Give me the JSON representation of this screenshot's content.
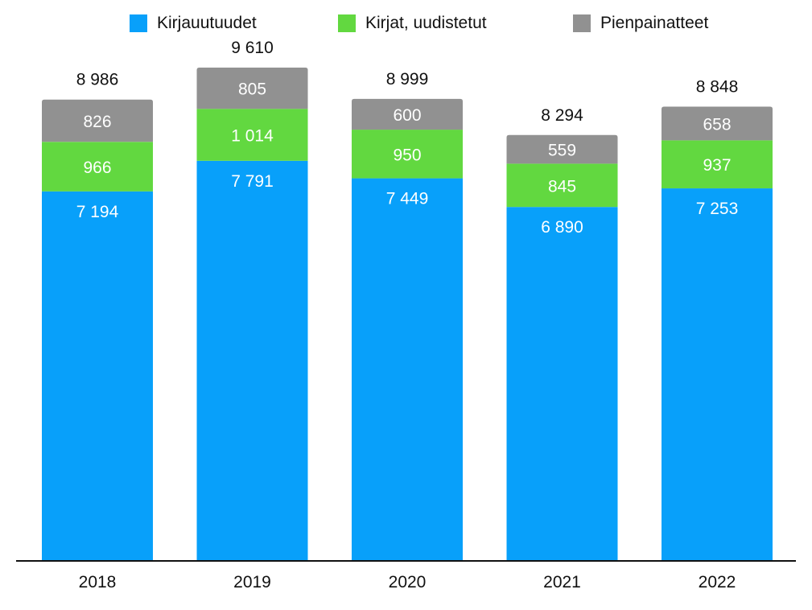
{
  "chart_data": {
    "type": "bar",
    "stacked": true,
    "categories": [
      "2018",
      "2019",
      "2020",
      "2021",
      "2022"
    ],
    "series": [
      {
        "name": "Kirjauutuudet",
        "color": "#08a0fa",
        "values": [
          7194,
          7791,
          7449,
          6890,
          7253
        ],
        "labels": [
          "7 194",
          "7 791",
          "7 449",
          "6 890",
          "7 253"
        ]
      },
      {
        "name": "Kirjat, uudistetut",
        "color": "#62d840",
        "values": [
          966,
          1014,
          950,
          845,
          937
        ],
        "labels": [
          "966",
          "1 014",
          "950",
          "845",
          "937"
        ]
      },
      {
        "name": "Pienpainatteet",
        "color": "#919191",
        "values": [
          826,
          805,
          600,
          559,
          658
        ],
        "labels": [
          "826",
          "805",
          "600",
          "559",
          "658"
        ]
      }
    ],
    "totals": [
      8986,
      9610,
      8999,
      8294,
      8848
    ],
    "total_labels": [
      "8 986",
      "9 610",
      "8 999",
      "8 294",
      "8 848"
    ],
    "legend_position": "top",
    "ylim": [
      0,
      10300
    ],
    "grid": false
  }
}
